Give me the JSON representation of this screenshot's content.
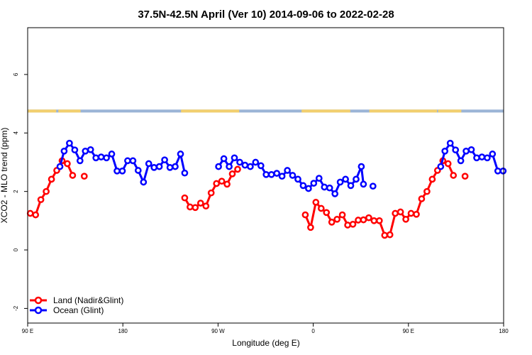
{
  "chart_data": {
    "type": "line",
    "title": "37.5N-42.5N April (Ver 10)   2014-09-06 to 2022-02-28",
    "xlabel": "Longitude (deg E)",
    "ylabel": "XCO2 - MLO trend (ppm)",
    "xlim": [
      90,
      540
    ],
    "ylim": [
      -2.5,
      7.6
    ],
    "x_ticks": [
      {
        "value": 90,
        "label": "90 E"
      },
      {
        "value": 180,
        "label": "180"
      },
      {
        "value": 270,
        "label": "90 W"
      },
      {
        "value": 360,
        "label": "0"
      },
      {
        "value": 450,
        "label": "90 E"
      },
      {
        "value": 540,
        "label": "180"
      }
    ],
    "y_ticks": [
      {
        "value": -2,
        "label": "-2"
      },
      {
        "value": 0,
        "label": "0"
      },
      {
        "value": 2,
        "label": "2"
      },
      {
        "value": 4,
        "label": "4"
      },
      {
        "value": 6,
        "label": "6"
      }
    ],
    "land_ocean_strip": {
      "y_range": [
        4.8,
        4.7
      ],
      "land_color": "#f2cf6e",
      "ocean_color": "#9bb4d6",
      "land_segments": [
        [
          90,
          117
        ],
        [
          119,
          140
        ],
        [
          235,
          290
        ],
        [
          349,
          395
        ],
        [
          413,
          477
        ],
        [
          478,
          500
        ]
      ]
    },
    "legend_position": "bottom-left",
    "series": [
      {
        "name": "Land (Nadir&Glint)",
        "color": "#ff0000",
        "points": [
          [
            92.5,
            1.25
          ],
          [
            97.5,
            1.2
          ],
          [
            102.5,
            1.72
          ],
          [
            107.5,
            2.0
          ],
          [
            112.5,
            2.42
          ],
          [
            117.5,
            2.72
          ],
          [
            122.5,
            3.05
          ],
          [
            127.5,
            2.95
          ],
          [
            132.5,
            2.55
          ],
          null,
          [
            143.5,
            2.52
          ],
          null,
          [
            238.5,
            1.78
          ],
          [
            243.5,
            1.47
          ],
          [
            248.5,
            1.45
          ],
          [
            253.5,
            1.6
          ],
          [
            258.5,
            1.5
          ],
          [
            263.5,
            1.95
          ],
          [
            268.5,
            2.27
          ],
          [
            273.5,
            2.35
          ],
          [
            278.5,
            2.25
          ],
          [
            283.5,
            2.6
          ],
          [
            288.5,
            2.76
          ],
          null,
          [
            352.5,
            1.2
          ],
          [
            357.5,
            0.77
          ],
          [
            362.5,
            1.63
          ],
          [
            367.5,
            1.42
          ],
          [
            372.5,
            1.28
          ],
          [
            377.5,
            0.95
          ],
          [
            382.5,
            1.05
          ],
          [
            387.5,
            1.2
          ],
          [
            392.5,
            0.85
          ],
          [
            397.5,
            0.88
          ],
          [
            402.5,
            1.02
          ],
          [
            407.5,
            1.03
          ],
          [
            412.5,
            1.1
          ],
          [
            417.5,
            1.0
          ],
          [
            422.5,
            1.0
          ],
          [
            427.5,
            0.5
          ],
          [
            432.5,
            0.52
          ],
          [
            437.5,
            1.25
          ],
          [
            442.5,
            1.3
          ],
          [
            447.5,
            1.05
          ],
          [
            452.5,
            1.25
          ],
          [
            457.5,
            1.22
          ],
          [
            462.5,
            1.75
          ],
          [
            467.5,
            2.0
          ],
          [
            472.5,
            2.42
          ],
          [
            477.5,
            2.72
          ],
          [
            482.5,
            3.05
          ],
          [
            487.5,
            2.95
          ],
          [
            492.5,
            2.55
          ],
          null,
          [
            503.5,
            2.52
          ]
        ]
      },
      {
        "name": "Ocean (Glint)",
        "color": "#0000ff",
        "points": [
          [
            120.5,
            2.85
          ],
          [
            124.5,
            3.38
          ],
          [
            129.5,
            3.65
          ],
          [
            134.5,
            3.42
          ],
          [
            139.5,
            3.05
          ],
          [
            144.5,
            3.38
          ],
          [
            149.5,
            3.43
          ],
          [
            154.5,
            3.15
          ],
          [
            159.5,
            3.18
          ],
          [
            164.5,
            3.15
          ],
          [
            169.5,
            3.28
          ],
          [
            174.5,
            2.7
          ],
          [
            179.5,
            2.7
          ],
          [
            184.5,
            3.05
          ],
          [
            189.5,
            3.05
          ],
          [
            194.5,
            2.72
          ],
          [
            199.5,
            2.32
          ],
          [
            204.5,
            2.95
          ],
          [
            209.5,
            2.82
          ],
          [
            214.5,
            2.85
          ],
          [
            219.5,
            3.08
          ],
          [
            224.5,
            2.82
          ],
          [
            229.5,
            2.85
          ],
          [
            234.5,
            3.28
          ],
          [
            238.5,
            2.63
          ],
          null,
          [
            270.5,
            2.85
          ],
          [
            275.5,
            3.12
          ],
          [
            280.5,
            2.85
          ],
          [
            285.5,
            3.15
          ],
          [
            290.5,
            3.0
          ],
          [
            295.5,
            2.9
          ],
          [
            300.5,
            2.85
          ],
          [
            305.5,
            3.0
          ],
          [
            310.5,
            2.88
          ],
          [
            315.5,
            2.58
          ],
          [
            320.5,
            2.58
          ],
          [
            325.5,
            2.62
          ],
          [
            330.5,
            2.52
          ],
          [
            335.5,
            2.72
          ],
          [
            340.5,
            2.55
          ],
          [
            345.5,
            2.42
          ],
          [
            350.5,
            2.2
          ],
          [
            355.5,
            2.1
          ],
          [
            360.5,
            2.28
          ],
          [
            365.5,
            2.45
          ],
          [
            370.5,
            2.15
          ],
          [
            375.5,
            2.12
          ],
          [
            380.5,
            1.92
          ],
          [
            385.5,
            2.32
          ],
          [
            390.5,
            2.42
          ],
          [
            395.5,
            2.2
          ],
          [
            400.5,
            2.42
          ],
          [
            405.5,
            2.85
          ],
          [
            407.5,
            2.25
          ],
          null,
          [
            416.5,
            2.18
          ],
          null,
          [
            480.5,
            2.85
          ],
          [
            484.5,
            3.38
          ],
          [
            489.5,
            3.65
          ],
          [
            494.5,
            3.42
          ],
          [
            499.5,
            3.05
          ],
          [
            504.5,
            3.38
          ],
          [
            509.5,
            3.43
          ],
          [
            514.5,
            3.15
          ],
          [
            519.5,
            3.18
          ],
          [
            524.5,
            3.15
          ],
          [
            529.5,
            3.28
          ],
          [
            534.5,
            2.7
          ],
          [
            539.5,
            2.7
          ]
        ]
      }
    ]
  }
}
